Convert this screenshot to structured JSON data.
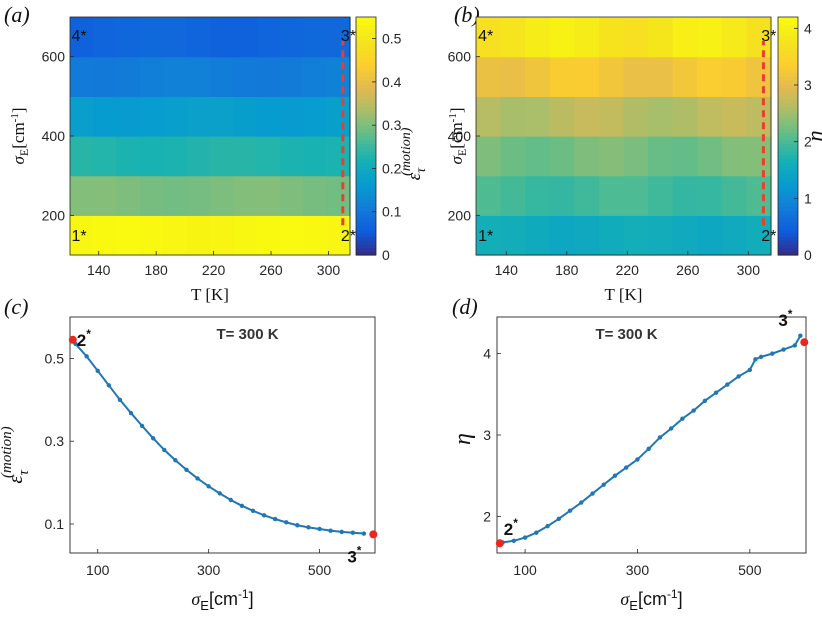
{
  "chart_data": [
    {
      "panel": "(a)",
      "type": "heatmap",
      "xlabel": "T [K]",
      "ylabel": "σ_E[cm^-1]",
      "x_ticks": [
        "140",
        "180",
        "220",
        "260",
        "300"
      ],
      "y_ticks": [
        "200",
        "400",
        "600"
      ],
      "xlim": [
        120,
        315
      ],
      "ylim": [
        100,
        700
      ],
      "colorbar": {
        "label": "ε_τ^(motion)",
        "ticks": [
          "0",
          "0.1",
          "0.2",
          "0.3",
          "0.4",
          "0.5"
        ],
        "range": [
          0,
          0.55
        ]
      },
      "row_bands": [
        {
          "y0": 100,
          "y1": 200,
          "value": 0.54
        },
        {
          "y0": 200,
          "y1": 300,
          "value": 0.3
        },
        {
          "y0": 300,
          "y1": 400,
          "value": 0.23
        },
        {
          "y0": 400,
          "y1": 500,
          "value": 0.17
        },
        {
          "y0": 500,
          "y1": 600,
          "value": 0.11
        },
        {
          "y0": 600,
          "y1": 700,
          "value": 0.07
        }
      ],
      "corner_labels": [
        {
          "text": "1*",
          "x": 128,
          "y": 150
        },
        {
          "text": "2*",
          "x": 308,
          "y": 150
        },
        {
          "text": "3*",
          "x": 308,
          "y": 655
        },
        {
          "text": "4*",
          "x": 128,
          "y": 655
        }
      ],
      "dashed_line": {
        "x": 310,
        "y0": 175,
        "y1": 640,
        "color": "#e8402a"
      }
    },
    {
      "panel": "(b)",
      "type": "heatmap",
      "xlabel": "T [K]",
      "ylabel": "σ_E[cm^-1]",
      "x_ticks": [
        "140",
        "180",
        "220",
        "260",
        "300"
      ],
      "y_ticks": [
        "200",
        "400",
        "600"
      ],
      "xlim": [
        120,
        315
      ],
      "ylim": [
        100,
        700
      ],
      "colorbar": {
        "label": "η",
        "ticks": [
          "0",
          "1",
          "2",
          "3",
          "4"
        ],
        "range": [
          0,
          4.2
        ]
      },
      "row_bands": [
        {
          "y0": 100,
          "y1": 200,
          "value": 1.55
        },
        {
          "y0": 200,
          "y1": 300,
          "value": 1.95
        },
        {
          "y0": 300,
          "y1": 400,
          "value": 2.25
        },
        {
          "y0": 400,
          "y1": 500,
          "value": 2.65
        },
        {
          "y0": 500,
          "y1": 600,
          "value": 3.2
        },
        {
          "y0": 600,
          "y1": 700,
          "value": 3.85
        }
      ],
      "corner_labels": [
        {
          "text": "1*",
          "x": 128,
          "y": 150
        },
        {
          "text": "2*",
          "x": 308,
          "y": 150
        },
        {
          "text": "3*",
          "x": 308,
          "y": 655
        },
        {
          "text": "4*",
          "x": 128,
          "y": 655
        }
      ],
      "dashed_line": {
        "x": 310,
        "y0": 175,
        "y1": 640,
        "color": "#e8402a"
      }
    },
    {
      "panel": "(c)",
      "type": "line",
      "title": "T= 300 K",
      "xlabel": "σ_E[cm^-1]",
      "ylabel": "ε_τ^(motion)",
      "x_ticks": [
        "100",
        "300",
        "500"
      ],
      "y_ticks": [
        "0.1",
        "0.3",
        "0.5"
      ],
      "xlim": [
        50,
        600
      ],
      "ylim": [
        0.03,
        0.6
      ],
      "series_color": "#1f77b4",
      "x": [
        60,
        80,
        100,
        120,
        140,
        160,
        180,
        200,
        220,
        240,
        260,
        280,
        300,
        320,
        340,
        360,
        380,
        400,
        420,
        440,
        460,
        480,
        500,
        520,
        540,
        560,
        580
      ],
      "y": [
        0.535,
        0.505,
        0.47,
        0.435,
        0.4,
        0.368,
        0.337,
        0.307,
        0.279,
        0.254,
        0.231,
        0.21,
        0.191,
        0.174,
        0.158,
        0.144,
        0.132,
        0.121,
        0.112,
        0.104,
        0.097,
        0.092,
        0.088,
        0.084,
        0.081,
        0.079,
        0.077
      ],
      "endpoints": [
        {
          "label": "2",
          "x": 55,
          "y": 0.545
        },
        {
          "label": "3",
          "x": 597,
          "y": 0.075
        }
      ]
    },
    {
      "panel": "(d)",
      "type": "line",
      "title": "T= 300 K",
      "xlabel": "σ_E[cm^-1]",
      "ylabel": "η",
      "x_ticks": [
        "100",
        "300",
        "500"
      ],
      "y_ticks": [
        "2",
        "3",
        "4"
      ],
      "xlim": [
        50,
        600
      ],
      "ylim": [
        1.55,
        4.45
      ],
      "series_color": "#1f77b4",
      "x": [
        60,
        80,
        100,
        120,
        140,
        160,
        180,
        200,
        220,
        240,
        260,
        280,
        300,
        320,
        340,
        360,
        380,
        400,
        420,
        440,
        460,
        480,
        500,
        510,
        520,
        540,
        560,
        580,
        590
      ],
      "y": [
        1.68,
        1.7,
        1.74,
        1.8,
        1.88,
        1.97,
        2.07,
        2.17,
        2.28,
        2.39,
        2.5,
        2.6,
        2.7,
        2.83,
        2.97,
        3.08,
        3.2,
        3.3,
        3.42,
        3.52,
        3.62,
        3.72,
        3.8,
        3.93,
        3.96,
        4.0,
        4.05,
        4.1,
        4.22
      ],
      "endpoints": [
        {
          "label": "2",
          "x": 55,
          "y": 1.67
        },
        {
          "label": "3",
          "x": 597,
          "y": 4.14
        }
      ]
    }
  ]
}
